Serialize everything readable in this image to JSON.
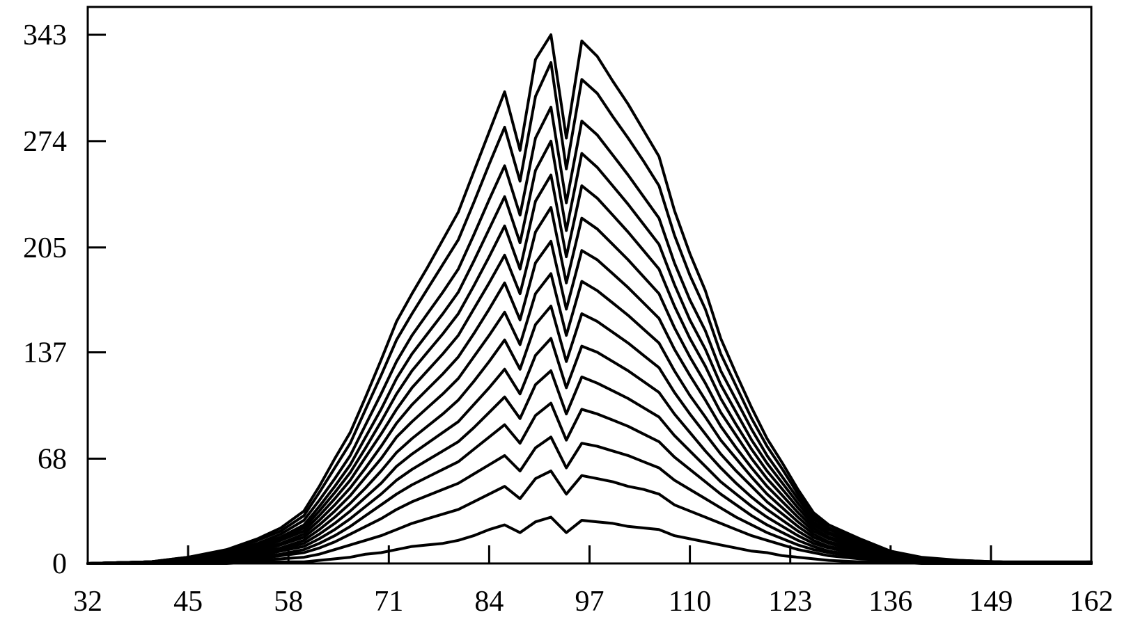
{
  "chart_data": {
    "type": "line",
    "title": "",
    "xlabel": "",
    "ylabel": "",
    "xlim": [
      32,
      162
    ],
    "ylim": [
      0,
      343
    ],
    "xticks": [
      32,
      45,
      58,
      71,
      84,
      97,
      110,
      123,
      136,
      149,
      162
    ],
    "yticks": [
      0,
      68,
      137,
      205,
      274,
      343
    ],
    "xtick_labels": [
      "32",
      "45",
      "58",
      "71",
      "84",
      "97",
      "110",
      "123",
      "136",
      "149",
      "162"
    ],
    "ytick_labels": [
      "0",
      "68",
      "137",
      "205",
      "274",
      "343"
    ],
    "grid": false,
    "legend": "none",
    "x": [
      32,
      40,
      45,
      50,
      54,
      57,
      60,
      62,
      64,
      66,
      68,
      70,
      72,
      74,
      76,
      78,
      80,
      82,
      84,
      86,
      88,
      90,
      92,
      94,
      96,
      98,
      100,
      102,
      104,
      106,
      108,
      110,
      112,
      114,
      116,
      118,
      120,
      122,
      124,
      126,
      128,
      132,
      136,
      140,
      145,
      150,
      155,
      162
    ],
    "series": [
      {
        "values": [
          0,
          0,
          0,
          0,
          1,
          1,
          1,
          2,
          3,
          4,
          6,
          7,
          9,
          11,
          12,
          13,
          15,
          18,
          22,
          25,
          20,
          27,
          30,
          20,
          28,
          27,
          26,
          24,
          23,
          22,
          18,
          16,
          14,
          12,
          10,
          8,
          7,
          5,
          4,
          3,
          2,
          1,
          1,
          0,
          0,
          0,
          0,
          0
        ]
      },
      {
        "values": [
          0,
          0,
          0,
          1,
          2,
          3,
          4,
          6,
          9,
          12,
          15,
          18,
          22,
          26,
          29,
          32,
          35,
          40,
          45,
          50,
          42,
          55,
          60,
          45,
          57,
          55,
          53,
          50,
          48,
          45,
          38,
          34,
          30,
          26,
          22,
          18,
          15,
          12,
          9,
          7,
          5,
          3,
          2,
          1,
          0,
          0,
          0,
          0
        ]
      },
      {
        "values": [
          0,
          0,
          1,
          2,
          3,
          5,
          7,
          10,
          14,
          19,
          24,
          29,
          35,
          40,
          44,
          48,
          52,
          58,
          64,
          70,
          60,
          75,
          82,
          62,
          78,
          76,
          73,
          70,
          66,
          62,
          54,
          48,
          42,
          36,
          30,
          25,
          20,
          16,
          12,
          9,
          7,
          4,
          2,
          1,
          0,
          0,
          0,
          0
        ]
      },
      {
        "values": [
          0,
          0,
          1,
          2,
          4,
          6,
          9,
          13,
          18,
          24,
          31,
          38,
          45,
          51,
          56,
          61,
          66,
          74,
          82,
          90,
          78,
          96,
          104,
          80,
          100,
          97,
          93,
          89,
          84,
          79,
          69,
          61,
          53,
          45,
          38,
          31,
          25,
          20,
          15,
          11,
          8,
          5,
          3,
          1,
          0,
          0,
          0,
          0
        ]
      },
      {
        "values": [
          0,
          0,
          1,
          3,
          5,
          8,
          11,
          16,
          22,
          29,
          37,
          45,
          54,
          61,
          67,
          73,
          79,
          88,
          98,
          108,
          94,
          116,
          125,
          97,
          121,
          117,
          112,
          107,
          101,
          95,
          83,
          73,
          63,
          53,
          45,
          37,
          30,
          24,
          18,
          13,
          10,
          6,
          3,
          1,
          1,
          0,
          0,
          0
        ]
      },
      {
        "values": [
          0,
          1,
          1,
          3,
          6,
          9,
          13,
          19,
          26,
          34,
          43,
          52,
          63,
          71,
          78,
          85,
          92,
          103,
          114,
          126,
          110,
          135,
          146,
          114,
          141,
          137,
          131,
          125,
          118,
          111,
          97,
          85,
          73,
          62,
          52,
          43,
          35,
          28,
          21,
          15,
          11,
          7,
          4,
          2,
          1,
          0,
          0,
          0
        ]
      },
      {
        "values": [
          0,
          1,
          2,
          4,
          7,
          10,
          15,
          22,
          30,
          39,
          49,
          60,
          72,
          81,
          89,
          97,
          106,
          118,
          131,
          145,
          126,
          155,
          167,
          131,
          162,
          157,
          150,
          143,
          135,
          127,
          111,
          97,
          84,
          71,
          60,
          50,
          40,
          32,
          24,
          17,
          13,
          8,
          4,
          2,
          1,
          0,
          0,
          0
        ]
      },
      {
        "values": [
          0,
          1,
          2,
          4,
          8,
          12,
          17,
          25,
          34,
          44,
          56,
          68,
          82,
          92,
          101,
          110,
          120,
          134,
          148,
          163,
          142,
          175,
          188,
          148,
          183,
          177,
          169,
          161,
          152,
          143,
          125,
          109,
          95,
          80,
          68,
          56,
          45,
          36,
          27,
          19,
          14,
          9,
          5,
          2,
          1,
          0,
          0,
          0
        ]
      },
      {
        "values": [
          0,
          1,
          2,
          5,
          9,
          13,
          19,
          28,
          38,
          49,
          62,
          76,
          91,
          103,
          113,
          123,
          134,
          149,
          165,
          182,
          158,
          195,
          209,
          165,
          203,
          197,
          188,
          179,
          169,
          159,
          139,
          122,
          106,
          89,
          75,
          62,
          50,
          40,
          30,
          21,
          16,
          10,
          5,
          2,
          1,
          0,
          0,
          0
        ]
      },
      {
        "values": [
          0,
          1,
          2,
          5,
          10,
          15,
          21,
          31,
          42,
          54,
          69,
          84,
          100,
          114,
          125,
          136,
          148,
          165,
          182,
          200,
          175,
          215,
          231,
          182,
          224,
          217,
          207,
          197,
          186,
          175,
          153,
          134,
          117,
          98,
          83,
          68,
          55,
          44,
          33,
          23,
          17,
          11,
          6,
          3,
          1,
          1,
          0,
          0
        ]
      },
      {
        "values": [
          0,
          1,
          3,
          6,
          11,
          16,
          23,
          34,
          46,
          59,
          75,
          92,
          110,
          125,
          137,
          149,
          162,
          180,
          199,
          219,
          191,
          235,
          252,
          199,
          245,
          237,
          226,
          215,
          203,
          191,
          167,
          146,
          128,
          107,
          90,
          74,
          60,
          48,
          36,
          25,
          19,
          12,
          6,
          3,
          1,
          1,
          0,
          0
        ]
      },
      {
        "values": [
          0,
          1,
          3,
          6,
          12,
          17,
          25,
          37,
          50,
          64,
          82,
          100,
          120,
          136,
          149,
          162,
          176,
          196,
          217,
          238,
          208,
          255,
          274,
          216,
          266,
          257,
          245,
          233,
          220,
          207,
          181,
          158,
          139,
          116,
          98,
          80,
          65,
          52,
          39,
          27,
          20,
          13,
          7,
          3,
          1,
          1,
          0,
          0
        ]
      },
      {
        "values": [
          0,
          1,
          3,
          7,
          13,
          19,
          28,
          41,
          55,
          70,
          90,
          110,
          131,
          148,
          162,
          176,
          191,
          213,
          236,
          258,
          226,
          276,
          296,
          234,
          287,
          278,
          265,
          252,
          238,
          224,
          195,
          171,
          151,
          125,
          106,
          87,
          70,
          56,
          42,
          29,
          22,
          14,
          7,
          3,
          1,
          1,
          0,
          0
        ]
      },
      {
        "values": [
          0,
          1,
          4,
          8,
          15,
          21,
          31,
          46,
          62,
          78,
          100,
          122,
          145,
          162,
          178,
          194,
          210,
          234,
          259,
          283,
          248,
          303,
          325,
          256,
          314,
          305,
          290,
          276,
          261,
          245,
          213,
          187,
          165,
          136,
          115,
          94,
          76,
          61,
          45,
          31,
          23,
          15,
          8,
          3,
          2,
          1,
          0,
          1
        ]
      },
      {
        "values": [
          0,
          1,
          4,
          9,
          16,
          23,
          34,
          50,
          68,
          85,
          108,
          132,
          157,
          175,
          192,
          210,
          228,
          254,
          280,
          306,
          268,
          327,
          343,
          276,
          339,
          329,
          313,
          298,
          281,
          264,
          229,
          201,
          177,
          146,
          123,
          101,
          81,
          65,
          48,
          33,
          25,
          16,
          8,
          4,
          2,
          1,
          1,
          1
        ]
      }
    ]
  }
}
